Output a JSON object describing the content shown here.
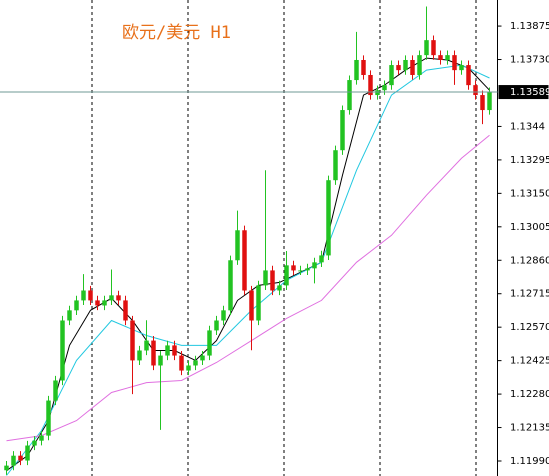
{
  "chart_data": {
    "type": "candlestick",
    "title": "欧元/美元 H1",
    "opens": [
      1.1195,
      1.1197,
      1.12013,
      1.11992,
      1.12057,
      1.12078,
      1.121,
      1.12252,
      1.12339,
      1.12599,
      1.12643,
      1.12686,
      1.12729,
      1.12686,
      1.12664,
      1.12686,
      1.12708,
      1.12686,
      1.12599,
      1.12426,
      1.12469,
      1.12512,
      1.12404,
      1.12447,
      1.12491,
      1.12447,
      1.12382,
      1.12404,
      1.12426,
      1.12447,
      1.12556,
      1.12599,
      1.12643,
      1.1286,
      1.1299,
      1.12729,
      1.12599,
      1.12751,
      1.12816,
      1.12729,
      1.12751,
      1.12838,
      1.12816,
      1.12816,
      1.12825,
      1.12851,
      1.12881,
      1.13207,
      1.13337,
      1.13511,
      1.13641,
      1.13728,
      1.13663,
      1.13576,
      1.13597,
      1.13619,
      1.13706,
      1.13684,
      1.13728,
      1.13663,
      1.13749,
      1.13814,
      1.13749,
      1.13728,
      1.13749,
      1.13684,
      1.13706,
      1.13619,
      1.13576,
      1.13511
    ],
    "highs": [
      1.1199,
      1.12033,
      1.12033,
      1.12077,
      1.12098,
      1.1212,
      1.12272,
      1.12359,
      1.12619,
      1.12663,
      1.12706,
      1.128,
      1.12749,
      1.12706,
      1.12706,
      1.1282,
      1.12728,
      1.12706,
      1.12619,
      1.12489,
      1.126,
      1.12532,
      1.12467,
      1.12511,
      1.12511,
      1.12467,
      1.12424,
      1.12446,
      1.12467,
      1.12576,
      1.12619,
      1.12663,
      1.1288,
      1.13075,
      1.1301,
      1.12749,
      1.12771,
      1.1325,
      1.12836,
      1.12771,
      1.129,
      1.12858,
      1.12836,
      1.12845,
      1.12871,
      1.12901,
      1.13227,
      1.13357,
      1.13531,
      1.13661,
      1.1385,
      1.13748,
      1.13683,
      1.13617,
      1.13639,
      1.13726,
      1.13726,
      1.13748,
      1.13748,
      1.13769,
      1.1396,
      1.13834,
      1.13769,
      1.13769,
      1.13769,
      1.13726,
      1.13726,
      1.13639,
      1.13596,
      1.13609
    ],
    "lows": [
      1.1193,
      1.1195,
      1.11972,
      1.11972,
      1.12037,
      1.12058,
      1.1208,
      1.12232,
      1.12319,
      1.12579,
      1.12623,
      1.12666,
      1.12666,
      1.12644,
      1.12644,
      1.12666,
      1.12666,
      1.12579,
      1.1228,
      1.12406,
      1.12449,
      1.12384,
      1.12125,
      1.12427,
      1.12427,
      1.12362,
      1.12362,
      1.12384,
      1.12406,
      1.12427,
      1.12536,
      1.12579,
      1.12623,
      1.1284,
      1.12709,
      1.1247,
      1.12579,
      1.12731,
      1.12709,
      1.12709,
      1.12731,
      1.12796,
      1.12796,
      1.12796,
      1.1276,
      1.12831,
      1.12861,
      1.13187,
      1.13317,
      1.13491,
      1.13621,
      1.13643,
      1.13556,
      1.13556,
      1.13577,
      1.13599,
      1.13664,
      1.13664,
      1.13643,
      1.13643,
      1.13729,
      1.13729,
      1.13708,
      1.13708,
      1.1362,
      1.13664,
      1.13599,
      1.13556,
      1.1345,
      1.13491
    ],
    "closes": [
      1.1197,
      1.12013,
      1.11992,
      1.12057,
      1.12078,
      1.121,
      1.12252,
      1.12339,
      1.12599,
      1.12643,
      1.12686,
      1.12729,
      1.12686,
      1.12664,
      1.12686,
      1.12708,
      1.12686,
      1.12599,
      1.12426,
      1.12469,
      1.12512,
      1.12404,
      1.12447,
      1.12491,
      1.12447,
      1.12382,
      1.12404,
      1.12426,
      1.12447,
      1.12556,
      1.12599,
      1.12643,
      1.1286,
      1.1299,
      1.12729,
      1.12599,
      1.12751,
      1.12816,
      1.12729,
      1.12751,
      1.12838,
      1.12816,
      1.12816,
      1.12825,
      1.12851,
      1.12881,
      1.13207,
      1.13337,
      1.13511,
      1.13641,
      1.13728,
      1.13663,
      1.13576,
      1.13597,
      1.13619,
      1.13706,
      1.13684,
      1.13728,
      1.13663,
      1.13749,
      1.13814,
      1.13749,
      1.13728,
      1.13749,
      1.13684,
      1.13706,
      1.13619,
      1.13576,
      1.13511,
      1.13589
    ],
    "up_color": "#22c322",
    "down_color": "#e01010",
    "lines": [
      {
        "color": "#000000",
        "x": [
          0,
          3,
          6,
          9,
          12,
          15,
          18,
          21,
          24,
          27,
          30,
          33,
          36,
          39,
          42,
          45,
          48,
          51,
          54,
          57,
          60,
          63,
          66,
          69
        ],
        "values": [
          1.11948,
          1.12013,
          1.12165,
          1.12491,
          1.12643,
          1.12695,
          1.12599,
          1.12469,
          1.12469,
          1.12426,
          1.12512,
          1.12686,
          1.12751,
          1.12764,
          1.12808,
          1.12851,
          1.13229,
          1.13576,
          1.13619,
          1.13684,
          1.13736,
          1.13728,
          1.13693,
          1.13597
        ]
      },
      {
        "color": "#22c8e0",
        "x": [
          0,
          5,
          10,
          15,
          20,
          25,
          30,
          35,
          40,
          45,
          50,
          55,
          60,
          65,
          69
        ],
        "values": [
          1.11927,
          1.12122,
          1.12426,
          1.12599,
          1.12534,
          1.12491,
          1.12491,
          1.12643,
          1.12773,
          1.12851,
          1.1325,
          1.13576,
          1.13684,
          1.13706,
          1.1365
        ]
      },
      {
        "color": "#e070e0",
        "x": [
          0,
          5,
          10,
          15,
          20,
          25,
          30,
          35,
          40,
          45,
          50,
          55,
          60,
          65,
          69
        ],
        "values": [
          1.12078,
          1.121,
          1.12165,
          1.12287,
          1.1233,
          1.12339,
          1.12417,
          1.12512,
          1.12608,
          1.12686,
          1.12851,
          1.12968,
          1.13142,
          1.13302,
          1.13402
        ]
      }
    ],
    "ylim": [
      1.11925,
      1.13988
    ],
    "yticks": [
      1.13875,
      {
        "value": 1.1373,
        "label": "1.13730"
      },
      1.1344,
      1.13295,
      {
        "value": 1.1315,
        "label": "1.13150"
      },
      1.13005,
      {
        "value": 1.1286,
        "label": "1.12860"
      },
      1.12715,
      {
        "value": 1.1257,
        "label": "1.12570"
      },
      1.12425,
      {
        "value": 1.1228,
        "label": "1.12280"
      },
      1.12135,
      {
        "value": 1.1199,
        "label": "1.11990"
      }
    ],
    "current_price": 1.13589,
    "current_price_color": "#6f9a96"
  }
}
